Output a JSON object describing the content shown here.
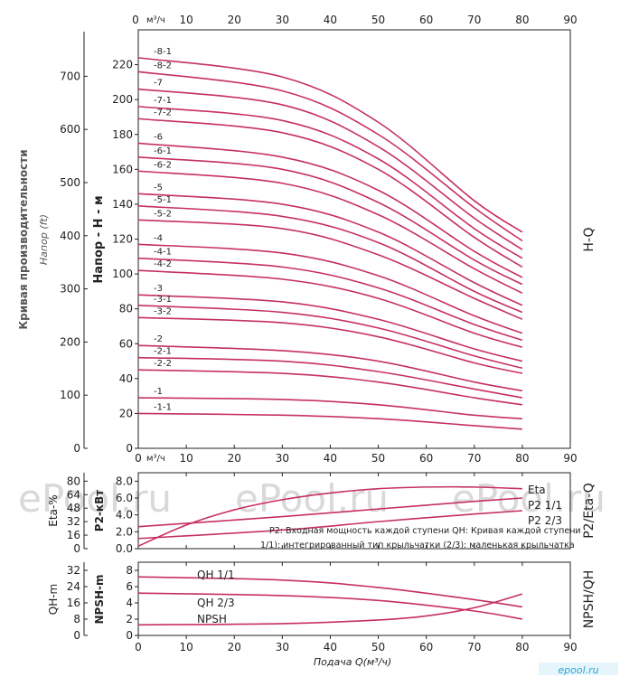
{
  "chart_data": [
    {
      "type": "line",
      "id": "hq",
      "right_label": "H-Q",
      "top_axis_unit": "м³/ч",
      "x_ticks": [
        0,
        10,
        20,
        30,
        40,
        50,
        60,
        70,
        80,
        90
      ],
      "xlim": [
        0,
        90
      ],
      "ylabel": "Напор - Н - м",
      "ylim": [
        0,
        240
      ],
      "y_ticks": [
        0,
        20,
        40,
        60,
        80,
        100,
        120,
        140,
        160,
        180,
        200,
        220
      ],
      "left_outer_title": "Кривая производительности",
      "left_outer_label": "Напор (ft)",
      "ft_ticks": [
        0,
        100,
        200,
        300,
        400,
        500,
        600,
        700
      ],
      "series": [
        {
          "name": "-8-1",
          "points": [
            [
              0,
              224
            ],
            [
              30,
              213
            ],
            [
              50,
              187
            ],
            [
              70,
              142
            ],
            [
              80,
              124
            ]
          ]
        },
        {
          "name": "-8-2",
          "points": [
            [
              0,
              216
            ],
            [
              30,
              205
            ],
            [
              50,
              180
            ],
            [
              70,
              138
            ],
            [
              80,
              119
            ]
          ]
        },
        {
          "name": "-7",
          "points": [
            [
              0,
              206
            ],
            [
              30,
              197
            ],
            [
              50,
              173
            ],
            [
              70,
              132
            ],
            [
              80,
              114
            ]
          ]
        },
        {
          "name": "-7-1",
          "points": [
            [
              0,
              196
            ],
            [
              30,
              188
            ],
            [
              50,
              166
            ],
            [
              70,
              126
            ],
            [
              80,
              109
            ]
          ]
        },
        {
          "name": "-7-2",
          "points": [
            [
              0,
              189
            ],
            [
              30,
              181
            ],
            [
              50,
              160
            ],
            [
              70,
              121
            ],
            [
              80,
              104
            ]
          ]
        },
        {
          "name": "-6",
          "points": [
            [
              0,
              175
            ],
            [
              30,
              167
            ],
            [
              50,
              148
            ],
            [
              70,
              113
            ],
            [
              80,
              98
            ]
          ]
        },
        {
          "name": "-6-1",
          "points": [
            [
              0,
              167
            ],
            [
              30,
              160
            ],
            [
              50,
              141
            ],
            [
              70,
              108
            ],
            [
              80,
              94
            ]
          ]
        },
        {
          "name": "-6-2",
          "points": [
            [
              0,
              159
            ],
            [
              30,
              152
            ],
            [
              50,
              134
            ],
            [
              70,
              103
            ],
            [
              80,
              89
            ]
          ]
        },
        {
          "name": "-5",
          "points": [
            [
              0,
              146
            ],
            [
              30,
              140
            ],
            [
              50,
              124
            ],
            [
              70,
              95
            ],
            [
              80,
              82
            ]
          ]
        },
        {
          "name": "-5-1",
          "points": [
            [
              0,
              139
            ],
            [
              30,
              133
            ],
            [
              50,
              118
            ],
            [
              70,
              90
            ],
            [
              80,
              78
            ]
          ]
        },
        {
          "name": "-5-2",
          "points": [
            [
              0,
              131
            ],
            [
              30,
              126
            ],
            [
              50,
              111
            ],
            [
              70,
              86
            ],
            [
              80,
              74
            ]
          ]
        },
        {
          "name": "-4",
          "points": [
            [
              0,
              117
            ],
            [
              30,
              112
            ],
            [
              50,
              99
            ],
            [
              70,
              76
            ],
            [
              80,
              66
            ]
          ]
        },
        {
          "name": "-4-1",
          "points": [
            [
              0,
              109
            ],
            [
              30,
              104
            ],
            [
              50,
              92
            ],
            [
              70,
              71
            ],
            [
              80,
              62
            ]
          ]
        },
        {
          "name": "-4-2",
          "points": [
            [
              0,
              102
            ],
            [
              30,
              97
            ],
            [
              50,
              86
            ],
            [
              70,
              66
            ],
            [
              80,
              58
            ]
          ]
        },
        {
          "name": "-3",
          "points": [
            [
              0,
              88
            ],
            [
              30,
              84
            ],
            [
              50,
              74
            ],
            [
              70,
              57
            ],
            [
              80,
              50
            ]
          ]
        },
        {
          "name": "-3-1",
          "points": [
            [
              0,
              82
            ],
            [
              30,
              78
            ],
            [
              50,
              69
            ],
            [
              70,
              53
            ],
            [
              80,
              46
            ]
          ]
        },
        {
          "name": "-3-2",
          "points": [
            [
              0,
              75
            ],
            [
              30,
              72
            ],
            [
              50,
              64
            ],
            [
              70,
              49
            ],
            [
              80,
              43
            ]
          ]
        },
        {
          "name": "-2",
          "points": [
            [
              0,
              59
            ],
            [
              30,
              56
            ],
            [
              50,
              50
            ],
            [
              70,
              38
            ],
            [
              80,
              33
            ]
          ]
        },
        {
          "name": "-2-1",
          "points": [
            [
              0,
              52
            ],
            [
              30,
              50
            ],
            [
              50,
              44
            ],
            [
              70,
              34
            ],
            [
              80,
              29
            ]
          ]
        },
        {
          "name": "-2-2",
          "points": [
            [
              0,
              45
            ],
            [
              30,
              43
            ],
            [
              50,
              38
            ],
            [
              70,
              29
            ],
            [
              80,
              25
            ]
          ]
        },
        {
          "name": "-1",
          "points": [
            [
              0,
              29
            ],
            [
              30,
              28
            ],
            [
              50,
              25
            ],
            [
              70,
              19
            ],
            [
              80,
              17
            ]
          ]
        },
        {
          "name": "-1-1",
          "points": [
            [
              0,
              20
            ],
            [
              30,
              19
            ],
            [
              50,
              17
            ],
            [
              70,
              13
            ],
            [
              80,
              11
            ]
          ]
        }
      ]
    },
    {
      "type": "line",
      "id": "p2eta",
      "right_label": "P2/Eta-Q",
      "top_axis_unit": "м³/ч",
      "x_ticks": [
        0,
        10,
        20,
        30,
        40,
        50,
        60,
        70,
        80,
        90
      ],
      "xlim": [
        0,
        90
      ],
      "ylabel": "P2-кВт",
      "ylim": [
        0,
        9
      ],
      "y_ticks": [
        "0.0",
        "2.0",
        "4.0",
        "6.0",
        "8.0"
      ],
      "left_outer_label": "Eta-%",
      "eta_ticks": [
        0,
        16,
        32,
        48,
        64,
        80
      ],
      "notes": [
        "P2: Входная мощность каждой ступени QH: Кривая каждой ступени",
        "1/1): интегрированный тип крыльчатки     (2/3): маленькая крыльчатка"
      ],
      "series": [
        {
          "name": "Eta",
          "points": [
            [
              0,
              0.3
            ],
            [
              10,
              2.8
            ],
            [
              20,
              4.6
            ],
            [
              30,
              5.8
            ],
            [
              40,
              6.6
            ],
            [
              50,
              7.1
            ],
            [
              60,
              7.3
            ],
            [
              70,
              7.3
            ],
            [
              80,
              7.1
            ]
          ]
        },
        {
          "name": "P2 1/1",
          "points": [
            [
              0,
              2.6
            ],
            [
              30,
              3.8
            ],
            [
              50,
              4.7
            ],
            [
              70,
              5.6
            ],
            [
              80,
              6.0
            ]
          ]
        },
        {
          "name": "P2 2/3",
          "points": [
            [
              0,
              1.2
            ],
            [
              30,
              2.2
            ],
            [
              50,
              3.2
            ],
            [
              70,
              4.1
            ],
            [
              80,
              4.5
            ]
          ]
        }
      ]
    },
    {
      "type": "line",
      "id": "npsh",
      "right_label": "NPSH/QH",
      "xlabel": "Подача Q(м³/ч)",
      "x_ticks": [
        0,
        10,
        20,
        30,
        40,
        50,
        60,
        70,
        80,
        90
      ],
      "xlim": [
        0,
        90
      ],
      "ylabel": "NPSH-m",
      "ylim": [
        0,
        9
      ],
      "y_ticks": [
        0,
        2,
        4,
        6,
        8
      ],
      "left_outer_label": "QH-m",
      "qh_ticks": [
        0,
        8,
        16,
        24,
        32
      ],
      "series": [
        {
          "name": "QH 1/1",
          "points": [
            [
              0,
              7.2
            ],
            [
              30,
              6.8
            ],
            [
              50,
              5.9
            ],
            [
              70,
              4.4
            ],
            [
              80,
              3.5
            ]
          ]
        },
        {
          "name": "QH 2/3",
          "points": [
            [
              0,
              5.2
            ],
            [
              30,
              4.9
            ],
            [
              50,
              4.3
            ],
            [
              70,
              3.0
            ],
            [
              80,
              2.0
            ]
          ]
        },
        {
          "name": "NPSH",
          "points": [
            [
              0,
              1.3
            ],
            [
              30,
              1.45
            ],
            [
              50,
              1.9
            ],
            [
              60,
              2.4
            ],
            [
              70,
              3.4
            ],
            [
              80,
              5.1
            ]
          ]
        }
      ]
    }
  ],
  "watermark": "ePool.ru",
  "brand": "epool.ru",
  "colors": {
    "curve": "#c6305e",
    "axis": "#222222",
    "text": "#222222",
    "watermark": "#d9d9d9",
    "brand": "#2aa6cf"
  }
}
